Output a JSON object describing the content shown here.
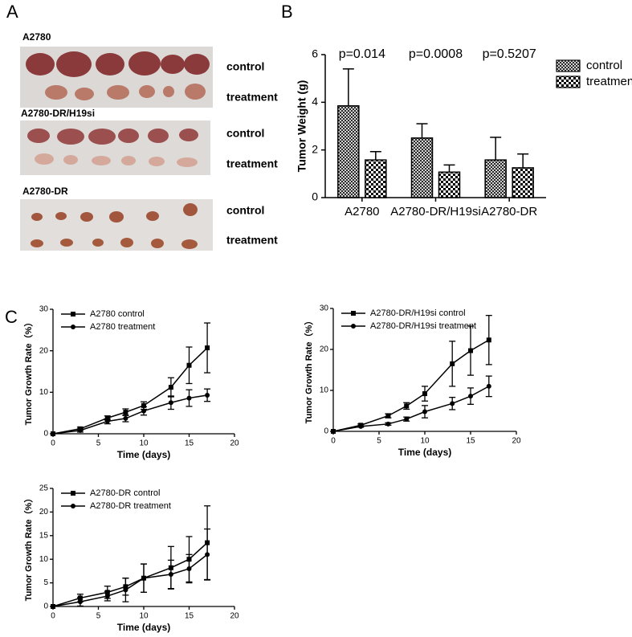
{
  "panel_labels": [
    "A",
    "B",
    "C"
  ],
  "photo_panel": {
    "groups": [
      {
        "title": "A2780",
        "rows": [
          "control",
          "treatment"
        ]
      },
      {
        "title": "A2780-DR/H19si",
        "rows": [
          "control",
          "treatment"
        ]
      },
      {
        "title": "A2780-DR",
        "rows": [
          "control",
          "treatment"
        ]
      }
    ]
  },
  "chart_data": [
    {
      "type": "bar",
      "y_label": "Tumor Weight (g)",
      "categories": [
        "A2780",
        "A2780-DR/H19si",
        "A2780-DR"
      ],
      "annotations": [
        "p=0.014",
        "p=0.0008",
        "p=0.5207"
      ],
      "series": [
        {
          "name": "control",
          "color": "#000000",
          "pattern": "crosshatch",
          "values": [
            3.85,
            2.5,
            1.58
          ],
          "errors": [
            1.55,
            0.6,
            0.95
          ]
        },
        {
          "name": "treatment",
          "color": "#000000",
          "pattern": "checker",
          "values": [
            1.58,
            1.07,
            1.25
          ],
          "errors": [
            0.35,
            0.3,
            0.58
          ]
        }
      ],
      "ylim": [
        0,
        6
      ],
      "yticks": [
        0,
        2,
        4,
        6
      ],
      "legend": "right"
    },
    {
      "type": "line",
      "x_label": "Time (days)",
      "y_label": "Tumor Growth Rate（%）",
      "x": [
        0,
        3,
        6,
        8,
        10,
        13,
        15,
        17
      ],
      "series": [
        {
          "name": "A2780 control",
          "color": "#000000",
          "marker": "square",
          "values": [
            0,
            1.2,
            3.8,
            5.2,
            6.8,
            11.2,
            16.5,
            20.7
          ],
          "errors": [
            0,
            0.4,
            0.5,
            0.8,
            0.9,
            2.3,
            4.4,
            6
          ]
        },
        {
          "name": "A2780 treatment",
          "color": "#000000",
          "marker": "circle",
          "values": [
            0,
            0.8,
            3,
            3.7,
            5.5,
            7.5,
            8.6,
            9.3
          ],
          "errors": [
            0,
            0.4,
            0.6,
            0.8,
            1,
            1.6,
            2,
            1.5
          ]
        }
      ],
      "xlim": [
        0,
        20
      ],
      "xticks": [
        0,
        5,
        10,
        15,
        20
      ],
      "ylim": [
        0,
        30
      ],
      "yticks": [
        0,
        10,
        20,
        30
      ],
      "legend": "upper left"
    },
    {
      "type": "line",
      "x_label": "Time (days)",
      "y_label": "Tumor Growth Rate（%）",
      "x": [
        0,
        3,
        6,
        8,
        10,
        13,
        15,
        17
      ],
      "series": [
        {
          "name": "A2780-DR/H19si control",
          "color": "#000000",
          "marker": "square",
          "values": [
            0,
            1.5,
            3.8,
            6.2,
            9.2,
            16.5,
            19.7,
            22.3
          ],
          "errors": [
            0,
            0.3,
            0.5,
            0.8,
            1.8,
            5.5,
            6,
            6
          ]
        },
        {
          "name": "A2780-DR/H19si treatment",
          "color": "#000000",
          "marker": "circle",
          "values": [
            0,
            1.2,
            1.8,
            3,
            4.8,
            6.8,
            8.6,
            11
          ],
          "errors": [
            0,
            0.2,
            0.3,
            0.5,
            1.5,
            1.5,
            2,
            2.5
          ]
        }
      ],
      "xlim": [
        0,
        20
      ],
      "xticks": [
        0,
        5,
        10,
        15,
        20
      ],
      "ylim": [
        0,
        30
      ],
      "yticks": [
        0,
        10,
        20,
        30
      ],
      "legend": "upper left"
    },
    {
      "type": "line",
      "x_label": "Time (days)",
      "y_label": "Tumor Growth Rate（%）",
      "x": [
        0,
        3,
        6,
        8,
        10,
        13,
        15,
        17
      ],
      "series": [
        {
          "name": "A2780-DR control",
          "color": "#000000",
          "marker": "square",
          "values": [
            0,
            1.8,
            3,
            4.2,
            6,
            8.2,
            10,
            13.5
          ],
          "errors": [
            0,
            0.8,
            1.3,
            1.8,
            3,
            4.5,
            4.8,
            7.8
          ]
        },
        {
          "name": "A2780-DR treatment",
          "color": "#000000",
          "marker": "circle",
          "values": [
            0,
            1,
            2.2,
            3.5,
            6,
            6.8,
            8,
            11
          ],
          "errors": [
            0,
            0.9,
            1,
            2.5,
            3,
            3,
            3,
            5.4
          ]
        }
      ],
      "xlim": [
        0,
        20
      ],
      "xticks": [
        0,
        5,
        10,
        15,
        20
      ],
      "ylim": [
        0,
        25
      ],
      "yticks": [
        0,
        5,
        10,
        15,
        20,
        25
      ],
      "legend": "upper left"
    }
  ]
}
